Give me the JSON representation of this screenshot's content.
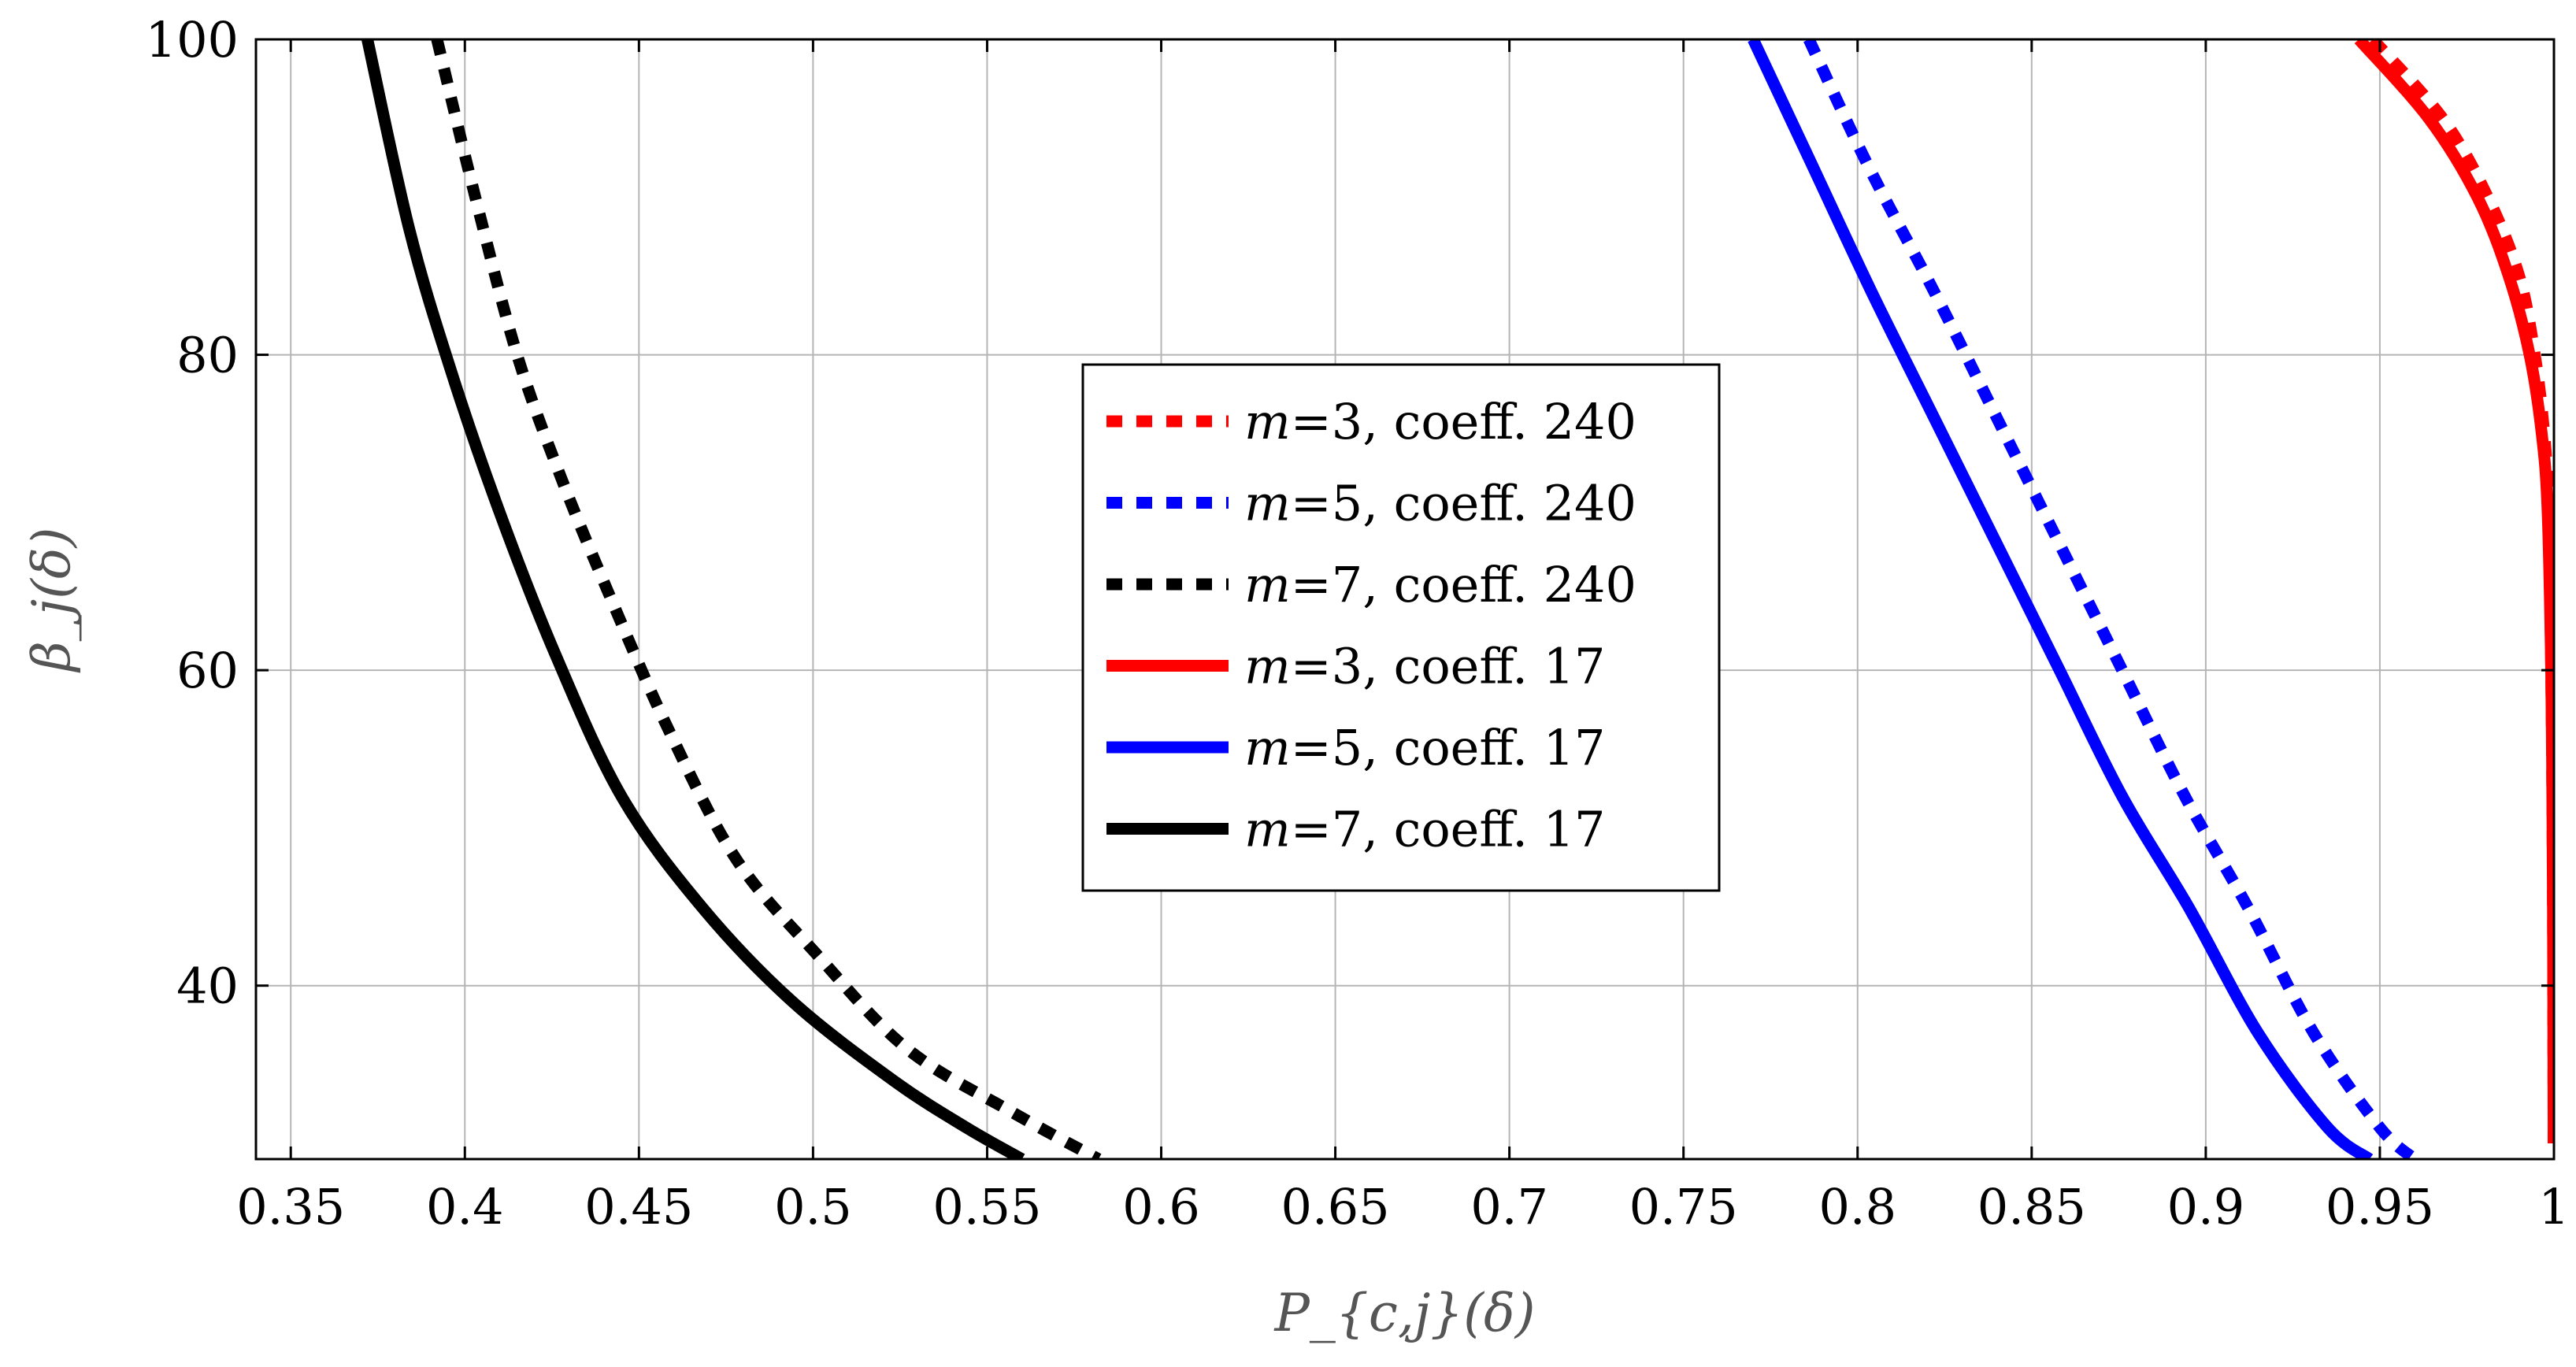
{
  "chart_data": {
    "type": "line",
    "title": "",
    "xlabel": "P_{c,j}(δ)",
    "ylabel": "β_j(δ)",
    "xlim": [
      0.34,
      1.0
    ],
    "ylim": [
      29,
      100
    ],
    "grid": true,
    "legend_position": "center",
    "x_ticks": [
      0.35,
      0.4,
      0.45,
      0.5,
      0.55,
      0.6,
      0.65,
      0.7,
      0.75,
      0.8,
      0.85,
      0.9,
      0.95,
      1
    ],
    "x_tick_labels": [
      "0.35",
      "0.4",
      "0.45",
      "0.5",
      "0.55",
      "0.6",
      "0.65",
      "0.7",
      "0.75",
      "0.8",
      "0.85",
      "0.9",
      "0.95",
      "1"
    ],
    "y_ticks": [
      40,
      60,
      80,
      100
    ],
    "y_tick_labels": [
      "40",
      "60",
      "80",
      "100"
    ],
    "series": [
      {
        "name": "m=3, coeff. 240",
        "m_label": "m",
        "rest_label": "=3, coeff. 240",
        "color": "#ff0000",
        "style": "dashed",
        "points": [
          [
            0.948,
            100
          ],
          [
            0.968,
            95
          ],
          [
            0.981,
            90
          ],
          [
            0.99,
            85
          ],
          [
            0.9945,
            80
          ],
          [
            0.9972,
            75
          ],
          [
            0.9985,
            70
          ],
          [
            0.9992,
            60
          ],
          [
            0.9996,
            50
          ],
          [
            0.9998,
            40
          ],
          [
            0.9999,
            30
          ]
        ]
      },
      {
        "name": "m=5, coeff. 240",
        "m_label": "m",
        "rest_label": "=5, coeff. 240",
        "color": "#0000ff",
        "style": "dashed",
        "points": [
          [
            0.786,
            100
          ],
          [
            0.803,
            92
          ],
          [
            0.822,
            84
          ],
          [
            0.84,
            76
          ],
          [
            0.858,
            68
          ],
          [
            0.876,
            60
          ],
          [
            0.894,
            52
          ],
          [
            0.912,
            45
          ],
          [
            0.931,
            37
          ],
          [
            0.95,
            31
          ],
          [
            0.96,
            29
          ]
        ]
      },
      {
        "name": "m=7, coeff. 240",
        "m_label": "m",
        "rest_label": "=7, coeff. 240",
        "color": "#000000",
        "style": "dashed",
        "points": [
          [
            0.392,
            100
          ],
          [
            0.403,
            90
          ],
          [
            0.415,
            80
          ],
          [
            0.428,
            72
          ],
          [
            0.443,
            64
          ],
          [
            0.459,
            56
          ],
          [
            0.478,
            48
          ],
          [
            0.501,
            42
          ],
          [
            0.527,
            36
          ],
          [
            0.557,
            32
          ],
          [
            0.582,
            29
          ]
        ]
      },
      {
        "name": "m=3, coeff. 17",
        "m_label": "m",
        "rest_label": "=3, coeff. 17",
        "color": "#ff0000",
        "style": "solid",
        "points": [
          [
            0.944,
            100
          ],
          [
            0.964,
            95
          ],
          [
            0.978,
            90
          ],
          [
            0.987,
            85
          ],
          [
            0.993,
            80
          ],
          [
            0.9965,
            75
          ],
          [
            0.9982,
            70
          ],
          [
            0.9992,
            60
          ],
          [
            0.9996,
            50
          ],
          [
            0.9998,
            40
          ],
          [
            0.9999,
            30
          ]
        ]
      },
      {
        "name": "m=5, coeff. 17",
        "m_label": "m",
        "rest_label": "=5, coeff. 17",
        "color": "#0000ff",
        "style": "solid",
        "points": [
          [
            0.77,
            100
          ],
          [
            0.787,
            92
          ],
          [
            0.804,
            84
          ],
          [
            0.822,
            76
          ],
          [
            0.84,
            68
          ],
          [
            0.858,
            60
          ],
          [
            0.876,
            52
          ],
          [
            0.895,
            45
          ],
          [
            0.915,
            37
          ],
          [
            0.935,
            31
          ],
          [
            0.947,
            29
          ]
        ]
      },
      {
        "name": "m=7, coeff. 17",
        "m_label": "m",
        "rest_label": "=7, coeff. 17",
        "color": "#000000",
        "style": "solid",
        "points": [
          [
            0.372,
            100
          ],
          [
            0.384,
            88
          ],
          [
            0.396,
            79
          ],
          [
            0.41,
            70
          ],
          [
            0.426,
            61
          ],
          [
            0.445,
            52
          ],
          [
            0.468,
            45
          ],
          [
            0.494,
            39
          ],
          [
            0.523,
            34
          ],
          [
            0.544,
            31
          ],
          [
            0.56,
            29
          ]
        ]
      }
    ]
  }
}
